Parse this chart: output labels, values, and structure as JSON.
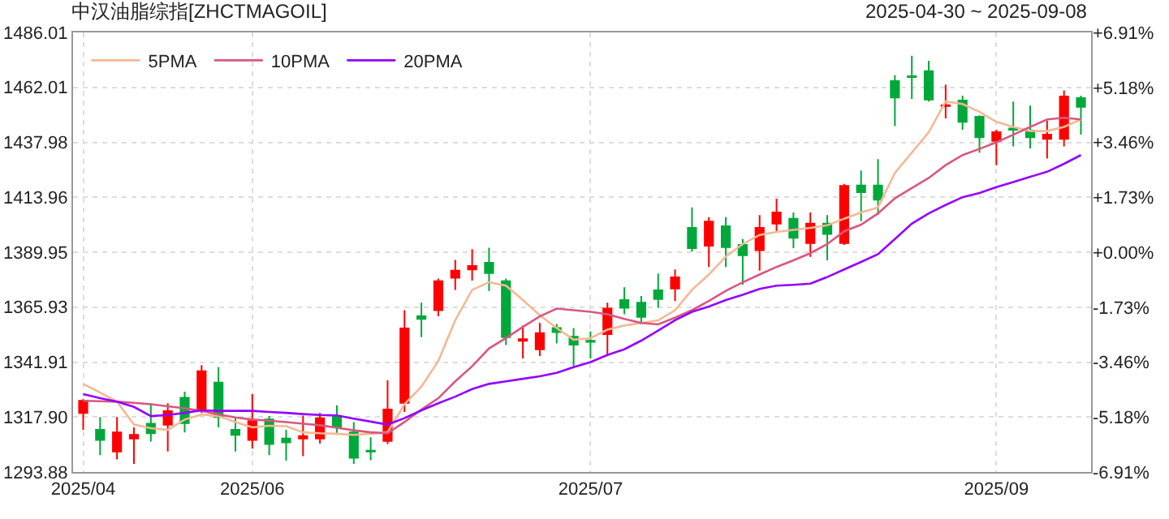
{
  "chart_data": {
    "type": "candlestick",
    "title": "中汉油脂综指[ZHCTMAGOIL]",
    "subtitle": "2025-04-30 ~ 2025-09-08",
    "categories": [
      "2025/04",
      null,
      null,
      null,
      null,
      null,
      null,
      null,
      null,
      null,
      "2025/06",
      null,
      null,
      null,
      null,
      null,
      null,
      null,
      null,
      null,
      null,
      null,
      null,
      null,
      null,
      null,
      null,
      null,
      null,
      null,
      "2025/07",
      null,
      null,
      null,
      null,
      null,
      null,
      null,
      null,
      null,
      null,
      null,
      null,
      null,
      null,
      null,
      null,
      null,
      null,
      null,
      null,
      null,
      null,
      null,
      "2025/09",
      null,
      null,
      null,
      null,
      null
    ],
    "ohlc": [
      [
        1319.7,
        1325.7,
        1312.3,
        1325.0
      ],
      [
        1312.3,
        1317.9,
        1301.2,
        1307.9
      ],
      [
        1302.8,
        1317.9,
        1299.4,
        1311.2
      ],
      [
        1308.5,
        1313.4,
        1297.4,
        1310.1
      ],
      [
        1315.0,
        1323.9,
        1307.2,
        1310.8
      ],
      [
        1314.5,
        1323.9,
        1302.8,
        1320.5
      ],
      [
        1326.3,
        1329.0,
        1311.2,
        1315.2
      ],
      [
        1321.0,
        1340.6,
        1319.7,
        1337.9
      ],
      [
        1333.0,
        1339.7,
        1313.4,
        1317.9
      ],
      [
        1312.3,
        1317.9,
        1302.8,
        1310.1
      ],
      [
        1307.9,
        1327.9,
        1304.1,
        1316.1
      ],
      [
        1316.8,
        1318.3,
        1301.2,
        1306.1
      ],
      [
        1308.5,
        1312.3,
        1298.8,
        1306.8
      ],
      [
        1308.5,
        1318.5,
        1300.8,
        1309.6
      ],
      [
        1308.5,
        1319.7,
        1306.3,
        1317.4
      ],
      [
        1318.3,
        1323.0,
        1310.1,
        1313.4
      ],
      [
        1311.2,
        1315.7,
        1297.4,
        1300.1
      ],
      [
        1303.2,
        1309.0,
        1299.0,
        1302.8
      ],
      [
        1307.4,
        1333.9,
        1306.1,
        1321.2
      ],
      [
        1324.1,
        1364.6,
        1320.1,
        1356.6
      ],
      [
        1361.9,
        1367.9,
        1352.8,
        1360.8
      ],
      [
        1364.6,
        1378.4,
        1361.9,
        1377.3
      ],
      [
        1378.8,
        1386.6,
        1373.5,
        1381.9
      ],
      [
        1382.4,
        1391.3,
        1377.5,
        1383.9
      ],
      [
        1385.3,
        1391.9,
        1373.0,
        1380.8
      ],
      [
        1377.3,
        1378.4,
        1349.4,
        1352.8
      ],
      [
        1351.2,
        1357.9,
        1343.5,
        1351.9
      ],
      [
        1347.5,
        1359.0,
        1344.6,
        1354.6
      ],
      [
        1356.8,
        1358.6,
        1350.1,
        1355.0
      ],
      [
        1353.0,
        1356.8,
        1340.1,
        1349.5
      ],
      [
        1351.2,
        1355.3,
        1343.5,
        1350.8
      ],
      [
        1354.1,
        1367.9,
        1345.0,
        1365.3
      ],
      [
        1369.0,
        1374.6,
        1362.8,
        1365.7
      ],
      [
        1367.9,
        1370.8,
        1358.4,
        1361.7
      ],
      [
        1373.3,
        1380.6,
        1365.7,
        1369.5
      ],
      [
        1374.1,
        1382.4,
        1368.6,
        1379.0
      ],
      [
        1400.6,
        1409.5,
        1390.2,
        1391.7
      ],
      [
        1392.8,
        1405.3,
        1383.5,
        1403.3
      ],
      [
        1401.3,
        1405.3,
        1383.5,
        1392.2
      ],
      [
        1393.1,
        1395.7,
        1375.7,
        1388.6
      ],
      [
        1390.8,
        1406.2,
        1381.9,
        1400.6
      ],
      [
        1402.4,
        1413.3,
        1399.1,
        1407.3
      ],
      [
        1404.6,
        1407.3,
        1391.7,
        1396.2
      ],
      [
        1393.9,
        1407.3,
        1387.9,
        1402.4
      ],
      [
        1402.4,
        1406.2,
        1386.4,
        1397.9
      ],
      [
        1393.9,
        1419.8,
        1393.1,
        1418.9
      ],
      [
        1419.1,
        1425.7,
        1403.5,
        1416.2
      ],
      [
        1419.1,
        1430.6,
        1406.2,
        1412.9
      ],
      [
        1464.7,
        1467.3,
        1445.1,
        1457.6
      ],
      [
        1466.9,
        1475.8,
        1456.9,
        1466.5
      ],
      [
        1469.1,
        1473.6,
        1455.8,
        1456.7
      ],
      [
        1453.8,
        1463.1,
        1448.4,
        1454.2
      ],
      [
        1456.2,
        1458.4,
        1443.5,
        1446.9
      ],
      [
        1449.1,
        1449.8,
        1433.5,
        1440.2
      ],
      [
        1438.6,
        1443.5,
        1428.0,
        1442.4
      ],
      [
        1444.0,
        1455.8,
        1436.2,
        1443.5
      ],
      [
        1443.1,
        1454.0,
        1435.3,
        1440.2
      ],
      [
        1439.5,
        1447.5,
        1430.9,
        1441.3
      ],
      [
        1439.5,
        1460.7,
        1436.2,
        1458.0
      ],
      [
        1457.3,
        1458.4,
        1441.3,
        1453.5
      ]
    ],
    "colors": [
      "#ff0000",
      "#00a83a",
      "#ff0000",
      "#ff0000",
      "#00a83a",
      "#ff0000",
      "#00a83a",
      "#ff0000",
      "#00a83a",
      "#00a83a",
      "#ff0000",
      "#00a83a",
      "#00a83a",
      "#ff0000",
      "#ff0000",
      "#00a83a",
      "#00a83a",
      "#00a83a",
      "#ff0000",
      "#ff0000",
      "#00a83a",
      "#ff0000",
      "#ff0000",
      "#ff0000",
      "#00a83a",
      "#00a83a",
      "#ff0000",
      "#ff0000",
      "#00a83a",
      "#00a83a",
      "#00a83a",
      "#ff0000",
      "#00a83a",
      "#00a83a",
      "#00a83a",
      "#ff0000",
      "#00a83a",
      "#ff0000",
      "#00a83a",
      "#00a83a",
      "#ff0000",
      "#ff0000",
      "#00a83a",
      "#ff0000",
      "#00a83a",
      "#ff0000",
      "#00a83a",
      "#00a83a",
      "#00a83a",
      "#00a83a",
      "#00a83a",
      "#ff0000",
      "#00a83a",
      "#00a83a",
      "#ff0000",
      "#00a83a",
      "#00a83a",
      "#ff0000",
      "#ff0000",
      "#00a83a"
    ],
    "series": [
      {
        "type": "line",
        "name": "5PMA",
        "color": "#f5b895",
        "values": [
          1332.4,
          1328.6,
          1324.6,
          1314.6,
          1313.0,
          1312.3,
          1316.8,
          1319.0,
          1318.3,
          1315.7,
          1313.4,
          1314.1,
          1313.9,
          1311.2,
          1310.8,
          1310.6,
          1310.1,
          1310.6,
          1311.2,
          1323.5,
          1331.2,
          1342.4,
          1360.2,
          1373.5,
          1376.8,
          1375.3,
          1369.0,
          1362.4,
          1356.8,
          1351.7,
          1352.4,
          1356.1,
          1357.9,
          1359.0,
          1360.2,
          1364.6,
          1373.5,
          1380.2,
          1388.0,
          1393.5,
          1397.5,
          1398.8,
          1399.7,
          1400.6,
          1401.7,
          1404.6,
          1407.3,
          1409.5,
          1424.6,
          1433.5,
          1442.4,
          1455.8,
          1454.7,
          1451.3,
          1446.9,
          1444.7,
          1442.9,
          1442.9,
          1444.7,
          1448.0
        ]
      },
      {
        "type": "line",
        "name": "10PMA",
        "color": "#d9577f",
        "values": [
          1325.0,
          1324.8,
          1324.6,
          1324.1,
          1323.5,
          1322.6,
          1321.7,
          1320.6,
          1319.0,
          1317.7,
          1316.8,
          1316.3,
          1315.7,
          1315.0,
          1314.3,
          1313.2,
          1312.1,
          1311.2,
          1310.8,
          1315.7,
          1321.2,
          1326.1,
          1333.5,
          1340.1,
          1347.9,
          1352.4,
          1357.3,
          1361.9,
          1365.3,
          1364.6,
          1363.9,
          1362.8,
          1360.8,
          1359.0,
          1358.4,
          1361.3,
          1364.6,
          1368.6,
          1373.1,
          1376.8,
          1380.2,
          1383.5,
          1386.4,
          1389.5,
          1393.5,
          1399.1,
          1402.0,
          1406.9,
          1413.5,
          1418.0,
          1422.4,
          1428.0,
          1432.4,
          1435.1,
          1438.0,
          1441.3,
          1444.7,
          1448.0,
          1448.7,
          1448.0
        ]
      },
      {
        "type": "line",
        "name": "20PMA",
        "color": "#9400ff",
        "values": [
          1327.9,
          1326.1,
          1324.6,
          1322.3,
          1318.3,
          1318.8,
          1319.7,
          1320.8,
          1320.6,
          1320.6,
          1320.6,
          1320.1,
          1319.7,
          1319.2,
          1318.8,
          1318.6,
          1317.2,
          1315.9,
          1314.6,
          1317.4,
          1320.8,
          1323.9,
          1326.8,
          1330.1,
          1332.4,
          1333.5,
          1334.6,
          1335.7,
          1337.2,
          1339.7,
          1341.9,
          1345.0,
          1347.5,
          1351.3,
          1355.7,
          1360.2,
          1363.9,
          1366.2,
          1369.0,
          1371.3,
          1373.9,
          1375.3,
          1375.7,
          1376.2,
          1379.1,
          1382.4,
          1385.7,
          1389.1,
          1395.7,
          1402.4,
          1406.9,
          1410.6,
          1414.0,
          1415.8,
          1418.4,
          1420.6,
          1422.9,
          1425.1,
          1428.6,
          1432.4
        ]
      }
    ],
    "ylim": [
      1293.88,
      1486.01
    ],
    "yticks": [
      1293.88,
      {
        "value": 1317.9,
        "label": "1317.90"
      },
      1341.91,
      1365.93,
      1389.95,
      1413.96,
      1437.98,
      1462.01,
      1486.01
    ],
    "y2lim": [
      -6.91,
      6.91
    ],
    "y2ticks": [
      {
        "value": -6.91,
        "label": "-6.91%"
      },
      {
        "value": -5.18,
        "label": "-5.18%"
      },
      {
        "value": -3.46,
        "label": "-3.46%"
      },
      {
        "value": -1.73,
        "label": "-1.73%"
      },
      {
        "value": 0,
        "label": "+0.00%"
      },
      {
        "value": 1.73,
        "label": "+1.73%"
      },
      {
        "value": 3.46,
        "label": "+3.46%"
      },
      {
        "value": 5.18,
        "label": "+5.18%"
      },
      {
        "value": 6.91,
        "label": "+6.91%"
      }
    ],
    "grid": true,
    "legend": "top left",
    "marker": "none"
  }
}
